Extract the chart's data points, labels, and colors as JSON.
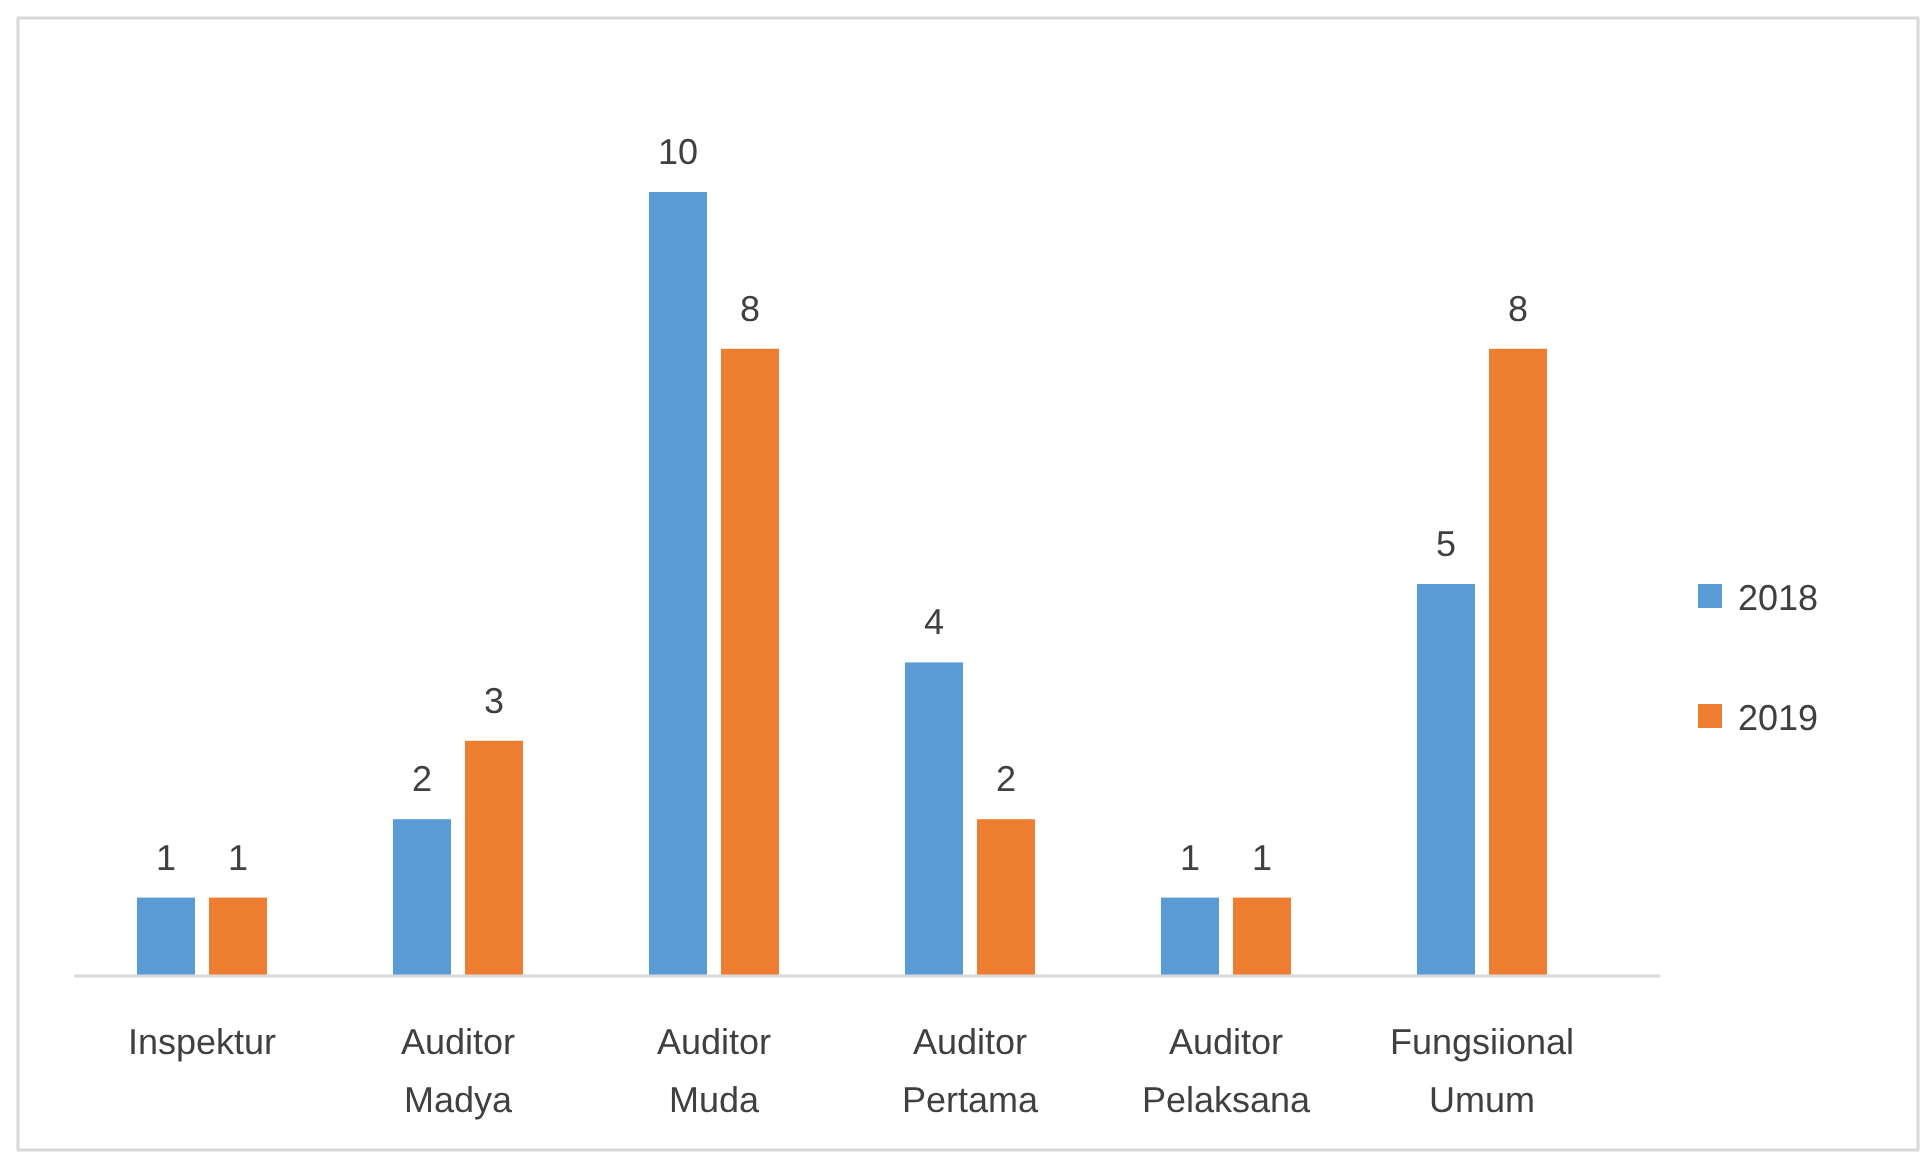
{
  "chart_data": {
    "type": "bar",
    "categories": [
      "Inspektur",
      "Auditor Madya",
      "Auditor Muda",
      "Auditor Pertama",
      "Auditor Pelaksana",
      "Fungsiional Umum"
    ],
    "series": [
      {
        "name": "2018",
        "color": "#5b9bd5",
        "values": [
          1,
          2,
          10,
          4,
          1,
          5
        ]
      },
      {
        "name": "2019",
        "color": "#ed7d31",
        "values": [
          1,
          3,
          8,
          2,
          1,
          8
        ]
      }
    ],
    "data_labels": true,
    "legend": "right",
    "grid": false
  }
}
